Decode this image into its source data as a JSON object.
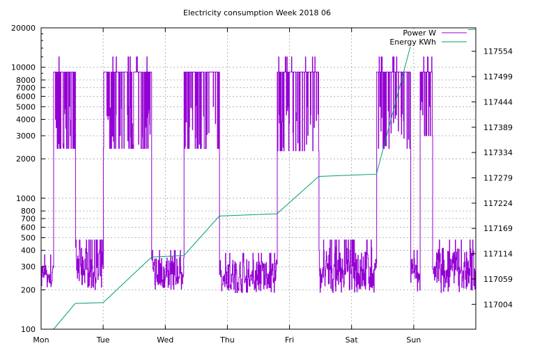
{
  "chart_data": {
    "type": "line",
    "title": "Electricity consumption Week 2018 06",
    "xlabel": "",
    "ylabel": "",
    "y2label": "",
    "grid": true,
    "legend_position": "top-right",
    "x_ticks": [
      "Mon",
      "Tue",
      "Wed",
      "Thu",
      "Fri",
      "Sat",
      "Sun"
    ],
    "xlim": [
      0,
      7
    ],
    "y_scale": "log",
    "ylim": [
      100,
      20000
    ],
    "y_ticks": [
      100,
      200,
      300,
      400,
      500,
      600,
      700,
      800,
      1000,
      2000,
      3000,
      4000,
      5000,
      6000,
      7000,
      8000,
      10000,
      20000
    ],
    "y2lim": [
      116950,
      117605
    ],
    "y2_ticks": [
      117004,
      117059,
      117114,
      117169,
      117224,
      117279,
      117334,
      117389,
      117444,
      117499,
      117554
    ],
    "colors": {
      "power": "#9400d3",
      "energy": "#009e73"
    },
    "series": [
      {
        "name": "Power W",
        "axis": "y1",
        "style": "steps",
        "blocks": [
          {
            "x_start": 0.0,
            "x_end": 0.2,
            "low": 200,
            "high": 370
          },
          {
            "x_start": 0.2,
            "x_end": 0.55,
            "low": 2400,
            "high": 9200,
            "peak": 12000
          },
          {
            "x_start": 0.55,
            "x_end": 1.0,
            "low": 200,
            "high": 480
          },
          {
            "x_start": 1.0,
            "x_end": 1.78,
            "low": 2400,
            "high": 9200,
            "peak": 12000
          },
          {
            "x_start": 1.78,
            "x_end": 2.3,
            "low": 200,
            "high": 400
          },
          {
            "x_start": 2.3,
            "x_end": 2.87,
            "low": 2400,
            "high": 9200
          },
          {
            "x_start": 2.87,
            "x_end": 3.8,
            "low": 190,
            "high": 380
          },
          {
            "x_start": 3.8,
            "x_end": 4.47,
            "low": 2300,
            "high": 9200,
            "peak": 12000
          },
          {
            "x_start": 4.47,
            "x_end": 5.4,
            "low": 190,
            "high": 480
          },
          {
            "x_start": 5.4,
            "x_end": 5.95,
            "low": 2400,
            "high": 9200,
            "peak": 12000
          },
          {
            "x_start": 5.95,
            "x_end": 6.1,
            "low": 190,
            "high": 400
          },
          {
            "x_start": 6.1,
            "x_end": 6.3,
            "low": 3000,
            "high": 9200,
            "peak": 12000
          },
          {
            "x_start": 6.3,
            "x_end": 7.0,
            "low": 190,
            "high": 480
          }
        ]
      },
      {
        "name": "Energy KWh",
        "axis": "y2",
        "style": "line",
        "x": [
          0.0,
          0.2,
          0.55,
          1.0,
          1.78,
          2.3,
          2.87,
          3.8,
          4.47,
          5.4,
          5.95,
          6.3,
          7.0
        ],
        "y": [
          116950,
          116950,
          117006,
          117008,
          117107,
          117110,
          117196,
          117201,
          117282,
          117287,
          117566,
          117597,
          117602
        ]
      }
    ]
  }
}
